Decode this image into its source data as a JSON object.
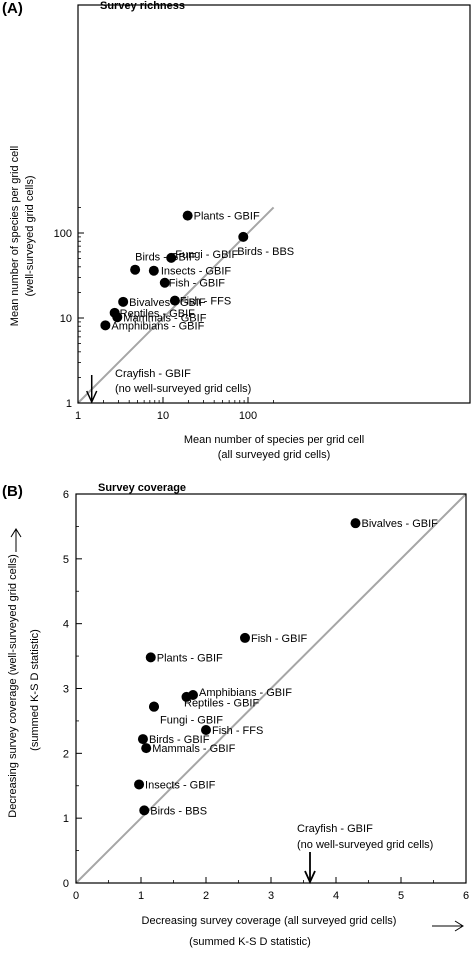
{
  "chart_data": [
    {
      "panel": "(A)",
      "title": "Survey richness",
      "type": "scatter",
      "x_scale": "log",
      "y_scale": "log",
      "xlim": [
        1,
        200
      ],
      "ylim": [
        1,
        200
      ],
      "xticks": [
        1,
        10,
        100
      ],
      "yticks": [
        1,
        10,
        100
      ],
      "xlabel": [
        "Mean number of species per grid cell",
        "(all surveyed grid cells)"
      ],
      "ylabel": [
        "Mean number of species per grid cell",
        "(well-surveyed grid cells)"
      ],
      "reference_line": "1:1",
      "grid": false,
      "points": [
        {
          "label": "Plants - GBIF",
          "x": 19.5,
          "y": 160
        },
        {
          "label": "Birds - BBS",
          "x": 88,
          "y": 90
        },
        {
          "label": "Fungi - GBIF",
          "x": 12.5,
          "y": 51
        },
        {
          "label": "Birds - GBIF",
          "x": 4.7,
          "y": 37
        },
        {
          "label": "Insects - GBIF",
          "x": 7.8,
          "y": 36
        },
        {
          "label": "Fish - GBIF",
          "x": 10.5,
          "y": 26
        },
        {
          "label": "Fish - FFS",
          "x": 13.8,
          "y": 16
        },
        {
          "label": "Bivalves - GBIF",
          "x": 3.4,
          "y": 15.5
        },
        {
          "label": "Reptiles - GBIF",
          "x": 2.7,
          "y": 11.5
        },
        {
          "label": "Mammals - GBIF",
          "x": 2.9,
          "y": 10.2
        },
        {
          "label": "Amphibians - GBIF",
          "x": 2.1,
          "y": 8.2
        }
      ],
      "annotation": {
        "lines": [
          "Crayfish - GBIF",
          "(no well-surveyed grid cells)"
        ],
        "x": 1.45
      }
    },
    {
      "panel": "(B)",
      "title": "Survey coverage",
      "type": "scatter",
      "xlim": [
        0,
        6
      ],
      "ylim": [
        0,
        6
      ],
      "xticks": [
        0,
        1,
        2,
        3,
        4,
        5,
        6
      ],
      "yticks": [
        0,
        1,
        2,
        3,
        4,
        5,
        6
      ],
      "xlabel": [
        "Decreasing survey coverage (all surveyed grid cells)",
        "(summed K-S D statistic)"
      ],
      "ylabel": [
        "Decreasing survey coverage (well-surveyed grid cells)",
        "(summed K-S D statistic)"
      ],
      "reference_line": "1:1",
      "grid": false,
      "points": [
        {
          "label": "Bivalves - GBIF",
          "x": 4.3,
          "y": 5.55
        },
        {
          "label": "Fish - GBIF",
          "x": 2.6,
          "y": 3.78
        },
        {
          "label": "Plants - GBIF",
          "x": 1.15,
          "y": 3.48
        },
        {
          "label": "Amphibians - GBIF",
          "x": 1.8,
          "y": 2.9
        },
        {
          "label": "",
          "x": 1.7,
          "y": 2.87
        },
        {
          "label": "Reptiles - GBIF",
          "x": 1.2,
          "y": 2.72
        },
        {
          "label": "Fungi - GBIF",
          "x": 1.2,
          "y": 2.72
        },
        {
          "label": "Fish - FFS",
          "x": 2.0,
          "y": 2.36
        },
        {
          "label": "Birds - GBIF",
          "x": 1.03,
          "y": 2.22
        },
        {
          "label": "Mammals - GBIF",
          "x": 1.08,
          "y": 2.08
        },
        {
          "label": "Insects - GBIF",
          "x": 0.97,
          "y": 1.52
        },
        {
          "label": "Birds - BBS",
          "x": 1.05,
          "y": 1.12
        }
      ],
      "annotation": {
        "lines": [
          "Crayfish - GBIF",
          "(no well-surveyed grid cells)"
        ],
        "x": 3.6
      }
    }
  ]
}
